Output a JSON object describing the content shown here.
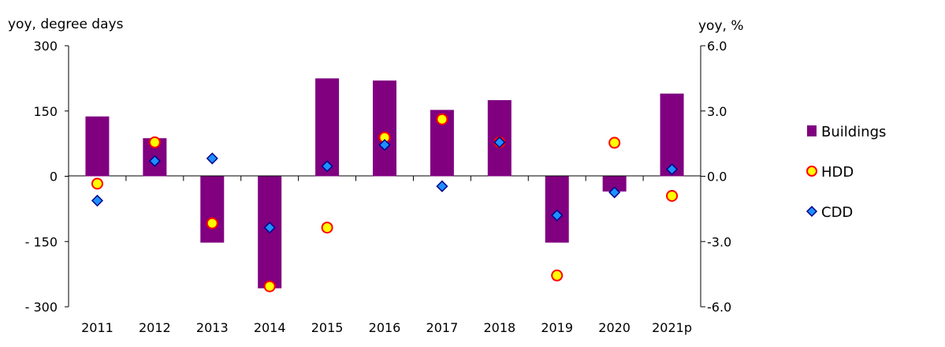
{
  "chart_data": {
    "type": "bar",
    "categories": [
      "2011",
      "2012",
      "2013",
      "2014",
      "2015",
      "2016",
      "2017",
      "2018",
      "2019",
      "2020",
      "2021p"
    ],
    "y_left_label": "yoy, degree days",
    "y_right_label": "yoy, %",
    "y_left_ticks": [
      "300",
      "150",
      "0",
      "- 150",
      "- 300"
    ],
    "y_right_ticks": [
      "6.0",
      "3.0",
      "0.0",
      "-3.0",
      "-6.0"
    ],
    "y_left_range": [
      -300,
      300
    ],
    "y_right_range": [
      -6,
      6
    ],
    "grid": false,
    "legend_position": "right",
    "series": [
      {
        "name": "Buildings",
        "kind": "bar",
        "axis": "right",
        "color": "#800080",
        "values": [
          2.75,
          1.75,
          -3.05,
          -5.15,
          4.5,
          4.4,
          3.05,
          3.5,
          -3.05,
          -0.7,
          3.8
        ]
      },
      {
        "name": "HDD",
        "kind": "marker",
        "marker": "circle",
        "axis": "left",
        "fill": "#ffff00",
        "stroke": "#ff0000",
        "values": [
          -17,
          78,
          -108,
          -253,
          -118,
          89,
          131,
          78,
          -228,
          77,
          -45
        ]
      },
      {
        "name": "CDD",
        "kind": "marker",
        "marker": "diamond",
        "axis": "left",
        "fill": "#1e90ff",
        "stroke": "#00008b",
        "values": [
          -56,
          35,
          41,
          -118,
          23,
          72,
          -23,
          78,
          -90,
          -37,
          16
        ]
      }
    ]
  }
}
